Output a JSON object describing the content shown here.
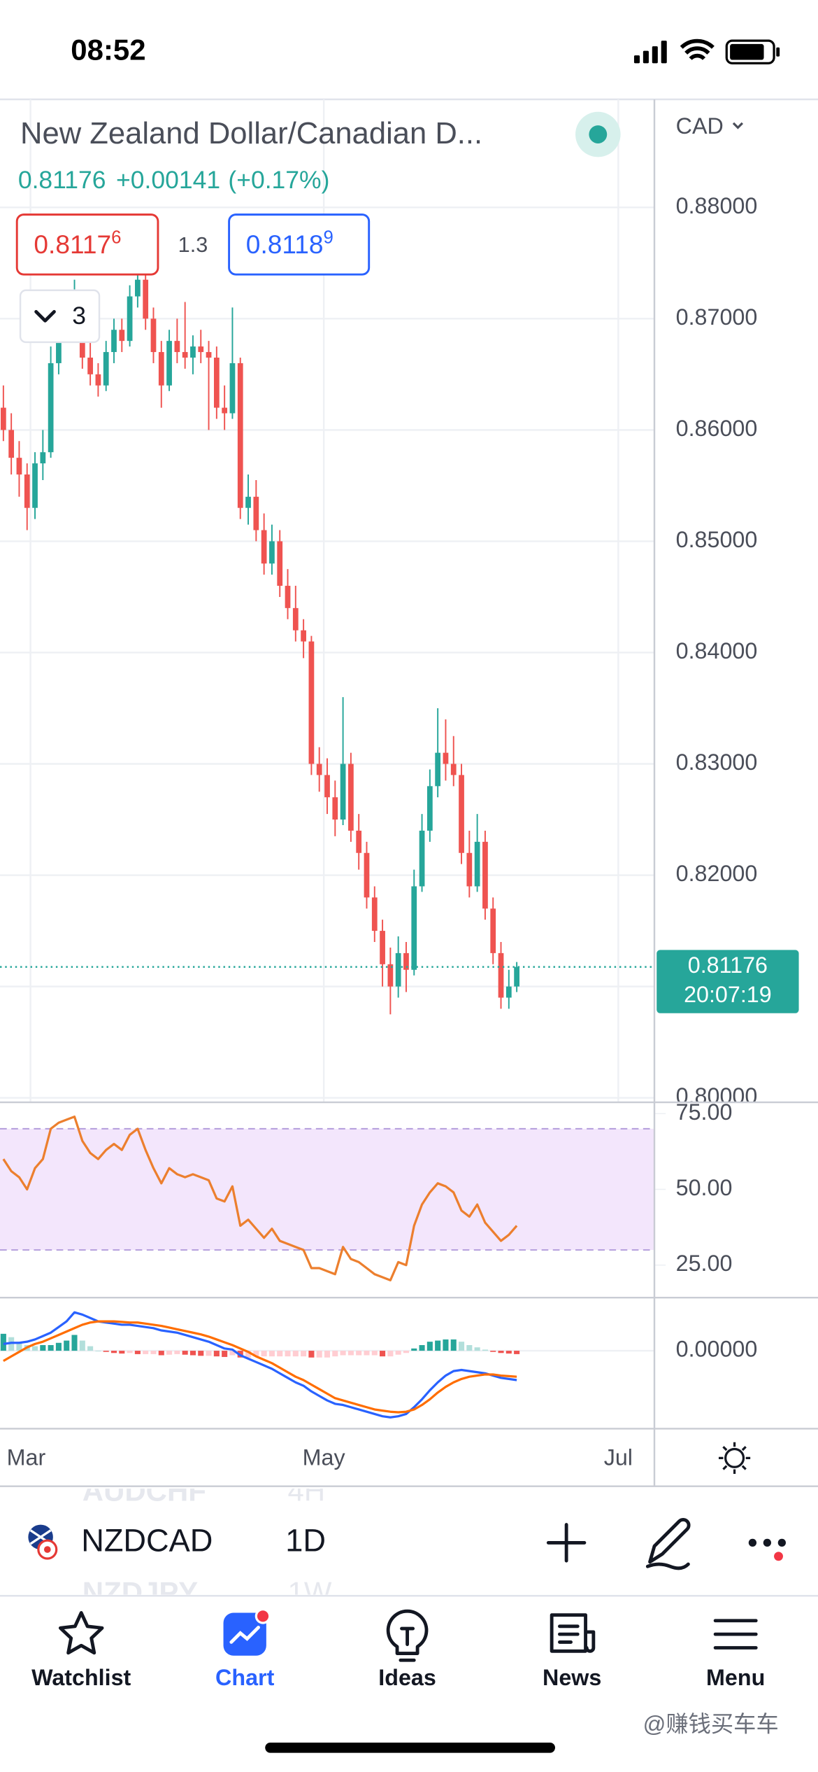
{
  "status_bar": {
    "time": "08:52"
  },
  "header": {
    "title": "New Zealand Dollar/Canadian D...",
    "last": "0.81176",
    "change": "+0.00141",
    "change_pct": "(+0.17%)",
    "sell": {
      "price": "0.8117",
      "last_digit": "6"
    },
    "spread": "1.3",
    "buy": {
      "price": "0.8118",
      "last_digit": "9"
    },
    "indicators": "3"
  },
  "chart_data": {
    "type": "candlestick",
    "currency": "CAD",
    "up_color": "#26a69a",
    "down_color": "#ef5350",
    "ylim": [
      0.7997,
      0.8897
    ],
    "yticks": [
      {
        "value": 0.8,
        "label": "0.80000"
      },
      {
        "value": 0.81,
        "label": "0.81000"
      },
      {
        "value": 0.82,
        "label": "0.82000"
      },
      {
        "value": 0.83,
        "label": "0.83000"
      },
      {
        "value": 0.84,
        "label": "0.84000"
      },
      {
        "value": 0.85,
        "label": "0.85000"
      },
      {
        "value": 0.86,
        "label": "0.86000"
      },
      {
        "value": 0.87,
        "label": "0.87000"
      },
      {
        "value": 0.88,
        "label": "0.88000"
      }
    ],
    "grid": true,
    "last_price": 0.81176,
    "countdown": "20:07:19",
    "x_labels": [
      "Mar",
      "May",
      "Jul"
    ],
    "candles": [
      [
        0.862,
        0.864,
        0.859,
        0.86
      ],
      [
        0.86,
        0.8615,
        0.856,
        0.8575
      ],
      [
        0.8575,
        0.859,
        0.854,
        0.856
      ],
      [
        0.856,
        0.857,
        0.851,
        0.853
      ],
      [
        0.853,
        0.858,
        0.852,
        0.857
      ],
      [
        0.857,
        0.86,
        0.8555,
        0.858
      ],
      [
        0.858,
        0.8675,
        0.8575,
        0.866
      ],
      [
        0.866,
        0.87,
        0.865,
        0.869
      ],
      [
        0.869,
        0.8715,
        0.868,
        0.87
      ],
      [
        0.87,
        0.8735,
        0.869,
        0.872
      ],
      [
        0.872,
        0.8725,
        0.8655,
        0.8665
      ],
      [
        0.8665,
        0.868,
        0.864,
        0.865
      ],
      [
        0.865,
        0.866,
        0.863,
        0.864
      ],
      [
        0.864,
        0.868,
        0.8635,
        0.867
      ],
      [
        0.867,
        0.87,
        0.866,
        0.869
      ],
      [
        0.869,
        0.87,
        0.867,
        0.868
      ],
      [
        0.868,
        0.873,
        0.8675,
        0.872
      ],
      [
        0.872,
        0.8745,
        0.871,
        0.8735
      ],
      [
        0.8735,
        0.874,
        0.869,
        0.87
      ],
      [
        0.87,
        0.871,
        0.866,
        0.867
      ],
      [
        0.867,
        0.868,
        0.862,
        0.864
      ],
      [
        0.864,
        0.869,
        0.8635,
        0.868
      ],
      [
        0.868,
        0.87,
        0.866,
        0.867
      ],
      [
        0.867,
        0.8715,
        0.8655,
        0.8665
      ],
      [
        0.8665,
        0.8685,
        0.865,
        0.8675
      ],
      [
        0.8675,
        0.869,
        0.866,
        0.867
      ],
      [
        0.867,
        0.868,
        0.86,
        0.8665
      ],
      [
        0.8665,
        0.8675,
        0.861,
        0.862
      ],
      [
        0.862,
        0.864,
        0.86,
        0.8615
      ],
      [
        0.8615,
        0.871,
        0.861,
        0.866
      ],
      [
        0.866,
        0.8665,
        0.852,
        0.853
      ],
      [
        0.853,
        0.856,
        0.8515,
        0.854
      ],
      [
        0.854,
        0.8555,
        0.85,
        0.851
      ],
      [
        0.851,
        0.8525,
        0.847,
        0.848
      ],
      [
        0.848,
        0.8515,
        0.847,
        0.85
      ],
      [
        0.85,
        0.851,
        0.845,
        0.846
      ],
      [
        0.846,
        0.8475,
        0.843,
        0.844
      ],
      [
        0.844,
        0.846,
        0.841,
        0.842
      ],
      [
        0.842,
        0.843,
        0.8395,
        0.841
      ],
      [
        0.841,
        0.8415,
        0.829,
        0.83
      ],
      [
        0.83,
        0.8315,
        0.8275,
        0.829
      ],
      [
        0.829,
        0.8305,
        0.8255,
        0.827
      ],
      [
        0.827,
        0.8285,
        0.8235,
        0.825
      ],
      [
        0.825,
        0.836,
        0.8245,
        0.83
      ],
      [
        0.83,
        0.831,
        0.823,
        0.824
      ],
      [
        0.824,
        0.8255,
        0.8205,
        0.822
      ],
      [
        0.822,
        0.823,
        0.817,
        0.818
      ],
      [
        0.818,
        0.819,
        0.814,
        0.815
      ],
      [
        0.815,
        0.816,
        0.81,
        0.812
      ],
      [
        0.812,
        0.8135,
        0.8075,
        0.81
      ],
      [
        0.81,
        0.8145,
        0.809,
        0.813
      ],
      [
        0.813,
        0.814,
        0.8095,
        0.8115
      ],
      [
        0.8115,
        0.8205,
        0.811,
        0.819
      ],
      [
        0.819,
        0.8255,
        0.8185,
        0.824
      ],
      [
        0.824,
        0.8295,
        0.823,
        0.828
      ],
      [
        0.828,
        0.835,
        0.827,
        0.831
      ],
      [
        0.831,
        0.834,
        0.8285,
        0.83
      ],
      [
        0.83,
        0.8325,
        0.828,
        0.829
      ],
      [
        0.829,
        0.83,
        0.821,
        0.822
      ],
      [
        0.822,
        0.824,
        0.818,
        0.819
      ],
      [
        0.819,
        0.8255,
        0.8185,
        0.823
      ],
      [
        0.823,
        0.824,
        0.816,
        0.817
      ],
      [
        0.817,
        0.818,
        0.812,
        0.813
      ],
      [
        0.813,
        0.814,
        0.808,
        0.809
      ],
      [
        0.809,
        0.8115,
        0.808,
        0.81
      ],
      [
        0.81,
        0.8122,
        0.8095,
        0.81176
      ]
    ],
    "rsi": {
      "color": "#ec7f2e",
      "band": [
        30,
        70
      ],
      "band_color": "#f3e6fc",
      "band_line": "#b39ddb",
      "ylim": [
        15,
        78
      ],
      "yticks": [
        {
          "value": 25,
          "label": "25.00"
        },
        {
          "value": 50,
          "label": "50.00"
        },
        {
          "value": 75,
          "label": "75.00"
        }
      ],
      "values": [
        60,
        56,
        54,
        50,
        57,
        60,
        70,
        72,
        73,
        74,
        66,
        62,
        60,
        63,
        65,
        63,
        68,
        70,
        63,
        57,
        52,
        57,
        55,
        54,
        55,
        54,
        53,
        47,
        46,
        51,
        38,
        40,
        37,
        34,
        37,
        33,
        32,
        31,
        30,
        24,
        24,
        23,
        22,
        31,
        27,
        26,
        24,
        22,
        21,
        20,
        26,
        25,
        38,
        45,
        49,
        52,
        51,
        49,
        43,
        41,
        45,
        39,
        36,
        33,
        35,
        38
      ]
    },
    "macd": {
      "macd_color": "#2962ff",
      "signal_color": "#ff6d00",
      "hist_colors": [
        "#26a69a",
        "#b2dfdb",
        "#ef5350",
        "#ffcdd2"
      ],
      "ylim": [
        -0.0138,
        0.0092
      ],
      "yticks": [
        {
          "value": 0,
          "label": "0.00000"
        }
      ],
      "macd": [
        0.0012,
        0.0014,
        0.0014,
        0.0016,
        0.002,
        0.0026,
        0.0032,
        0.0042,
        0.0052,
        0.0068,
        0.0064,
        0.0058,
        0.0052,
        0.005,
        0.0048,
        0.0046,
        0.0046,
        0.0044,
        0.0042,
        0.004,
        0.0036,
        0.0034,
        0.0032,
        0.0028,
        0.0024,
        0.002,
        0.0016,
        0.001,
        0.0004,
        0.0002,
        -0.0008,
        -0.0014,
        -0.002,
        -0.0026,
        -0.0032,
        -0.004,
        -0.0048,
        -0.0056,
        -0.0062,
        -0.0072,
        -0.008,
        -0.0088,
        -0.0094,
        -0.0096,
        -0.01,
        -0.0104,
        -0.0108,
        -0.0112,
        -0.0116,
        -0.0118,
        -0.0116,
        -0.0112,
        -0.01,
        -0.0086,
        -0.007,
        -0.0056,
        -0.0044,
        -0.0036,
        -0.0034,
        -0.0036,
        -0.0038,
        -0.004,
        -0.0044,
        -0.0048,
        -0.005,
        -0.0052
      ],
      "signal": [
        -0.0018,
        -0.001,
        -0.0002,
        0.0006,
        0.0012,
        0.0016,
        0.0022,
        0.0028,
        0.0034,
        0.004,
        0.0046,
        0.005,
        0.0052,
        0.0052,
        0.0052,
        0.0051,
        0.005,
        0.005,
        0.0048,
        0.0046,
        0.0044,
        0.0041,
        0.0038,
        0.0035,
        0.0032,
        0.0029,
        0.0025,
        0.002,
        0.0015,
        0.001,
        0.0004,
        -0.0002,
        -0.001,
        -0.0016,
        -0.0022,
        -0.003,
        -0.0038,
        -0.0046,
        -0.0052,
        -0.006,
        -0.0068,
        -0.0076,
        -0.0084,
        -0.0088,
        -0.0092,
        -0.0096,
        -0.01,
        -0.0104,
        -0.0106,
        -0.0108,
        -0.0109,
        -0.0108,
        -0.0104,
        -0.0096,
        -0.0086,
        -0.0074,
        -0.0064,
        -0.0056,
        -0.005,
        -0.0046,
        -0.0044,
        -0.0042,
        -0.0042,
        -0.0044,
        -0.0045,
        -0.0046
      ],
      "hist": [
        0.003,
        0.0024,
        0.0016,
        0.001,
        0.0008,
        0.001,
        0.001,
        0.0014,
        0.0018,
        0.0028,
        0.0018,
        0.0008,
        0,
        -0.0002,
        -0.0004,
        -0.0005,
        -0.0004,
        -0.0006,
        -0.0006,
        -0.0006,
        -0.0008,
        -0.0007,
        -0.0006,
        -0.0007,
        -0.0008,
        -0.0009,
        -0.0009,
        -0.001,
        -0.0011,
        -0.0008,
        -0.0012,
        -0.0012,
        -0.001,
        -0.001,
        -0.001,
        -0.001,
        -0.001,
        -0.001,
        -0.001,
        -0.0012,
        -0.0012,
        -0.0012,
        -0.001,
        -0.0008,
        -0.0008,
        -0.0008,
        -0.0008,
        -0.0008,
        -0.001,
        -0.001,
        -0.0007,
        -0.0004,
        0.0004,
        0.001,
        0.0016,
        0.0018,
        0.002,
        0.002,
        0.0016,
        0.001,
        0.0006,
        0.0002,
        -0.0002,
        -0.0004,
        -0.0005,
        -0.0006
      ]
    }
  },
  "symbol_bar": {
    "previous_symbol": "AUDCHF",
    "previous_interval": "4H",
    "symbol": "NZDCAD",
    "interval": "1D",
    "next_symbol": "NZDJPY",
    "next_interval": "1W"
  },
  "tabs": [
    "Watchlist",
    "Chart",
    "Ideas",
    "News",
    "Menu"
  ],
  "watermark": "@赚钱买车车"
}
